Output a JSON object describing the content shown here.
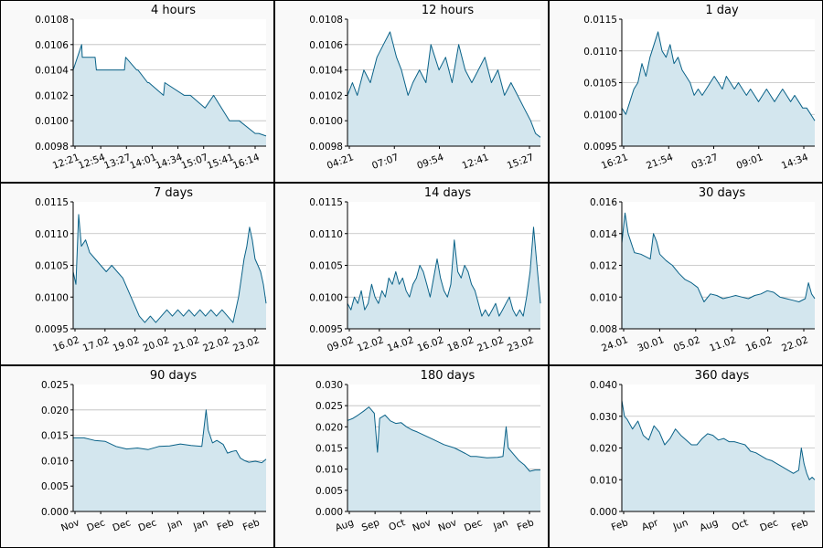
{
  "colors": {
    "line": "#0a6288",
    "fill": "#d3e6ee",
    "grid": "#bdbdbd",
    "panel_bg": "#f9f9f9",
    "border": "#000000"
  },
  "chart_data": [
    {
      "type": "area",
      "title": "4 hours",
      "ylim": [
        0.0098,
        0.0108
      ],
      "yticks": [
        "0.0098",
        "0.0100",
        "0.0102",
        "0.0104",
        "0.0106",
        "0.0108"
      ],
      "xticks": [
        "12:21",
        "12:54",
        "13:27",
        "14:01",
        "14:34",
        "15:07",
        "15:41",
        "16:14"
      ],
      "x": [
        0,
        0.7,
        0.75,
        1.8,
        1.9,
        4.2,
        4.3,
        5.2,
        5.3,
        6.1,
        6.2,
        7.4,
        7.5,
        9.1,
        9.6,
        10.8,
        11.5,
        12.8,
        13.6,
        14.9,
        15.2,
        15.8
      ],
      "values": [
        0.0104,
        0.0106,
        0.0105,
        0.0105,
        0.0104,
        0.0104,
        0.0105,
        0.0104,
        0.0104,
        0.0103,
        0.0103,
        0.0102,
        0.0103,
        0.0102,
        0.0102,
        0.0101,
        0.0102,
        0.01,
        0.01,
        0.0099,
        0.0099,
        0.00988
      ]
    },
    {
      "type": "area",
      "title": "12 hours",
      "ylim": [
        0.0098,
        0.0108
      ],
      "yticks": [
        "0.0098",
        "0.0100",
        "0.0102",
        "0.0104",
        "0.0106",
        "0.0108"
      ],
      "xticks": [
        "04:21",
        "07:07",
        "09:54",
        "12:41",
        "15:27"
      ],
      "x": [
        0,
        0.3,
        0.6,
        1.0,
        1.4,
        1.8,
        2.2,
        2.6,
        3.0,
        3.3,
        3.7,
        4.0,
        4.4,
        4.8,
        5.1,
        5.6,
        6.0,
        6.4,
        6.8,
        7.2,
        7.6,
        8.0,
        8.4,
        8.8,
        9.2,
        9.6,
        10.0,
        10.4,
        10.8,
        11.2,
        11.5,
        11.8
      ],
      "values": [
        0.0102,
        0.0103,
        0.0102,
        0.0104,
        0.0103,
        0.0105,
        0.0106,
        0.0107,
        0.0105,
        0.0104,
        0.0102,
        0.0103,
        0.0104,
        0.0103,
        0.0106,
        0.0104,
        0.0105,
        0.0103,
        0.0106,
        0.0104,
        0.0103,
        0.0104,
        0.0105,
        0.0103,
        0.0104,
        0.0102,
        0.0103,
        0.0102,
        0.0101,
        0.01,
        0.0099,
        0.00987
      ]
    },
    {
      "type": "area",
      "title": "1 day",
      "ylim": [
        0.0095,
        0.0115
      ],
      "yticks": [
        "0.0095",
        "0.0100",
        "0.0105",
        "0.0110",
        "0.0115"
      ],
      "xticks": [
        "16:21",
        "21:54",
        "03:27",
        "09:01",
        "14:34"
      ],
      "x": [
        0,
        0.5,
        1,
        1.5,
        2,
        2.5,
        3,
        3.5,
        4,
        4.5,
        5,
        5.5,
        6,
        6.5,
        7,
        7.5,
        8,
        8.5,
        9,
        9.5,
        10,
        10.5,
        11,
        11.5,
        12,
        12.5,
        13,
        13.5,
        14,
        14.5,
        15,
        15.5,
        16,
        16.5,
        17,
        17.5,
        18,
        18.5,
        19,
        19.5,
        20,
        20.5,
        21,
        21.5,
        22,
        22.5,
        23,
        23.5,
        24
      ],
      "values": [
        0.0101,
        0.01,
        0.0102,
        0.0104,
        0.0105,
        0.0108,
        0.0106,
        0.0109,
        0.0111,
        0.0113,
        0.011,
        0.0109,
        0.0111,
        0.0108,
        0.0109,
        0.0107,
        0.0106,
        0.0105,
        0.0103,
        0.0104,
        0.0103,
        0.0104,
        0.0105,
        0.0106,
        0.0105,
        0.0104,
        0.0106,
        0.0105,
        0.0104,
        0.0105,
        0.0104,
        0.0103,
        0.0104,
        0.0103,
        0.0102,
        0.0103,
        0.0104,
        0.0103,
        0.0102,
        0.0103,
        0.0104,
        0.0103,
        0.0102,
        0.0103,
        0.0102,
        0.0101,
        0.0101,
        0.01,
        0.0099
      ]
    },
    {
      "type": "area",
      "title": "7 days",
      "ylim": [
        0.0095,
        0.0115
      ],
      "yticks": [
        "0.0095",
        "0.0100",
        "0.0105",
        "0.0110",
        "0.0115"
      ],
      "xticks": [
        "16.02",
        "17.02",
        "19.02",
        "20.02",
        "21.02",
        "22.02",
        "23.02"
      ],
      "x": [
        0,
        0.1,
        0.2,
        0.3,
        0.45,
        0.6,
        0.8,
        1.0,
        1.2,
        1.4,
        1.6,
        1.8,
        2.0,
        2.2,
        2.4,
        2.6,
        2.8,
        3.0,
        3.2,
        3.4,
        3.6,
        3.8,
        4.0,
        4.2,
        4.4,
        4.6,
        4.8,
        5.0,
        5.2,
        5.4,
        5.6,
        5.8,
        6.0,
        6.1,
        6.2,
        6.3,
        6.4,
        6.5,
        6.6,
        6.7,
        6.8,
        6.9,
        7.0
      ],
      "values": [
        0.0104,
        0.0102,
        0.0113,
        0.0108,
        0.0109,
        0.0107,
        0.0106,
        0.0105,
        0.0104,
        0.0105,
        0.0104,
        0.0103,
        0.0101,
        0.0099,
        0.0097,
        0.0096,
        0.0097,
        0.0096,
        0.0097,
        0.0098,
        0.0097,
        0.0098,
        0.0097,
        0.0098,
        0.0097,
        0.0098,
        0.0097,
        0.0098,
        0.0097,
        0.0098,
        0.0097,
        0.0096,
        0.01,
        0.0103,
        0.0106,
        0.0108,
        0.0111,
        0.0109,
        0.0106,
        0.0105,
        0.0104,
        0.0102,
        0.0099
      ]
    },
    {
      "type": "area",
      "title": "14 days",
      "ylim": [
        0.0095,
        0.0115
      ],
      "yticks": [
        "0.0095",
        "0.0100",
        "0.0105",
        "0.0110",
        "0.0115"
      ],
      "xticks": [
        "09.02",
        "12.02",
        "14.02",
        "16.02",
        "18.02",
        "21.02",
        "23.02"
      ],
      "x": [
        0,
        0.5,
        1,
        1.5,
        2,
        2.5,
        3,
        3.5,
        4,
        4.5,
        5,
        5.5,
        6,
        6.5,
        7,
        7.5,
        8,
        8.5,
        9,
        9.5,
        10,
        10.5,
        11,
        11.5,
        12,
        12.5,
        13,
        13.5,
        14,
        14.5,
        15,
        15.5,
        16,
        16.5,
        17,
        17.5,
        18,
        18.5,
        19,
        19.5,
        20,
        20.5,
        21,
        21.5,
        22,
        22.5,
        23,
        23.5,
        24,
        24.5,
        25,
        25.5,
        26,
        26.5,
        27,
        27.5,
        28
      ],
      "values": [
        0.0099,
        0.0098,
        0.01,
        0.0099,
        0.0101,
        0.0098,
        0.0099,
        0.0102,
        0.01,
        0.0099,
        0.0101,
        0.01,
        0.0103,
        0.0102,
        0.0104,
        0.0102,
        0.0103,
        0.0101,
        0.01,
        0.0102,
        0.0103,
        0.0105,
        0.0104,
        0.0102,
        0.01,
        0.0103,
        0.0106,
        0.0103,
        0.0101,
        0.01,
        0.0102,
        0.0109,
        0.0104,
        0.0103,
        0.0105,
        0.0104,
        0.0102,
        0.0101,
        0.0099,
        0.0097,
        0.0098,
        0.0097,
        0.0098,
        0.0099,
        0.0097,
        0.0098,
        0.0099,
        0.01,
        0.0098,
        0.0097,
        0.0098,
        0.0097,
        0.01,
        0.0104,
        0.0111,
        0.0105,
        0.0099
      ]
    },
    {
      "type": "area",
      "title": "30 days",
      "ylim": [
        0.008,
        0.016
      ],
      "yticks": [
        "0.008",
        "0.010",
        "0.012",
        "0.014",
        "0.016"
      ],
      "xticks": [
        "24.01",
        "30.01",
        "05.02",
        "11.02",
        "16.02",
        "22.02"
      ],
      "x": [
        0,
        0.5,
        1,
        2,
        3,
        4,
        4.5,
        5,
        5.5,
        6,
        7,
        8,
        9,
        10,
        11,
        12,
        13,
        14,
        15,
        16,
        17,
        18,
        19,
        20,
        21,
        22,
        23,
        24,
        25,
        26,
        27,
        28,
        29,
        29.5,
        30,
        30.5
      ],
      "values": [
        0.0134,
        0.0153,
        0.014,
        0.0128,
        0.0127,
        0.0125,
        0.0124,
        0.014,
        0.0135,
        0.0127,
        0.0123,
        0.012,
        0.0115,
        0.0111,
        0.0109,
        0.0106,
        0.0097,
        0.0102,
        0.0101,
        0.0099,
        0.01,
        0.0101,
        0.01,
        0.0099,
        0.0101,
        0.0102,
        0.0104,
        0.0103,
        0.01,
        0.0099,
        0.0098,
        0.0097,
        0.0099,
        0.0109,
        0.0102,
        0.0099
      ]
    },
    {
      "type": "area",
      "title": "90 days",
      "ylim": [
        0,
        0.025
      ],
      "yticks": [
        "0.000",
        "0.005",
        "0.010",
        "0.015",
        "0.020",
        "0.025"
      ],
      "xticks": [
        "Nov",
        "Dec",
        "Dec",
        "Dec",
        "Jan",
        "Jan",
        "Feb",
        "Feb"
      ],
      "x": [
        0,
        5,
        10,
        15,
        20,
        25,
        30,
        35,
        40,
        45,
        50,
        55,
        60,
        62,
        63,
        65,
        67,
        70,
        72,
        74,
        76,
        78,
        80,
        82,
        85,
        88,
        90
      ],
      "values": [
        0.0145,
        0.0145,
        0.014,
        0.0138,
        0.0128,
        0.0123,
        0.0125,
        0.0122,
        0.0128,
        0.0129,
        0.0133,
        0.013,
        0.0128,
        0.02,
        0.016,
        0.0135,
        0.014,
        0.0132,
        0.0115,
        0.0118,
        0.012,
        0.0105,
        0.01,
        0.0097,
        0.0099,
        0.0096,
        0.0103
      ]
    },
    {
      "type": "area",
      "title": "180 days",
      "ylim": [
        0,
        0.03
      ],
      "yticks": [
        "0.000",
        "0.005",
        "0.010",
        "0.015",
        "0.020",
        "0.025",
        "0.030"
      ],
      "xticks": [
        "Aug",
        "Sep",
        "Oct",
        "Nov",
        "Nov",
        "Dec",
        "Jan",
        "Feb"
      ],
      "x": [
        0,
        5,
        10,
        15,
        20,
        25,
        28,
        30,
        35,
        40,
        45,
        50,
        55,
        60,
        65,
        70,
        80,
        90,
        100,
        110,
        115,
        120,
        130,
        140,
        145,
        148,
        150,
        155,
        160,
        165,
        170,
        175,
        180
      ],
      "values": [
        0.0215,
        0.022,
        0.0228,
        0.0237,
        0.0247,
        0.0232,
        0.014,
        0.022,
        0.0228,
        0.0214,
        0.0208,
        0.021,
        0.02,
        0.0193,
        0.0188,
        0.0182,
        0.017,
        0.0158,
        0.015,
        0.0137,
        0.013,
        0.013,
        0.0127,
        0.0128,
        0.013,
        0.02,
        0.015,
        0.0135,
        0.012,
        0.011,
        0.0095,
        0.0098,
        0.0098
      ]
    },
    {
      "type": "area",
      "title": "360 days",
      "ylim": [
        0,
        0.04
      ],
      "yticks": [
        "0.000",
        "0.010",
        "0.020",
        "0.030",
        "0.040"
      ],
      "xticks": [
        "Feb",
        "Apr",
        "Jun",
        "Aug",
        "Oct",
        "Dec",
        "Feb"
      ],
      "x": [
        0,
        5,
        10,
        20,
        30,
        40,
        50,
        60,
        70,
        80,
        90,
        100,
        110,
        120,
        130,
        140,
        150,
        160,
        170,
        180,
        190,
        200,
        210,
        220,
        230,
        240,
        250,
        260,
        270,
        280,
        290,
        300,
        310,
        320,
        330,
        335,
        340,
        345,
        350,
        355,
        360
      ],
      "values": [
        0.035,
        0.03,
        0.029,
        0.026,
        0.0285,
        0.024,
        0.0225,
        0.027,
        0.025,
        0.021,
        0.023,
        0.026,
        0.024,
        0.0225,
        0.021,
        0.021,
        0.023,
        0.0245,
        0.024,
        0.0225,
        0.023,
        0.022,
        0.022,
        0.0215,
        0.021,
        0.019,
        0.0185,
        0.0175,
        0.0165,
        0.016,
        0.015,
        0.014,
        0.013,
        0.012,
        0.013,
        0.02,
        0.015,
        0.012,
        0.01,
        0.0108,
        0.01
      ]
    }
  ]
}
